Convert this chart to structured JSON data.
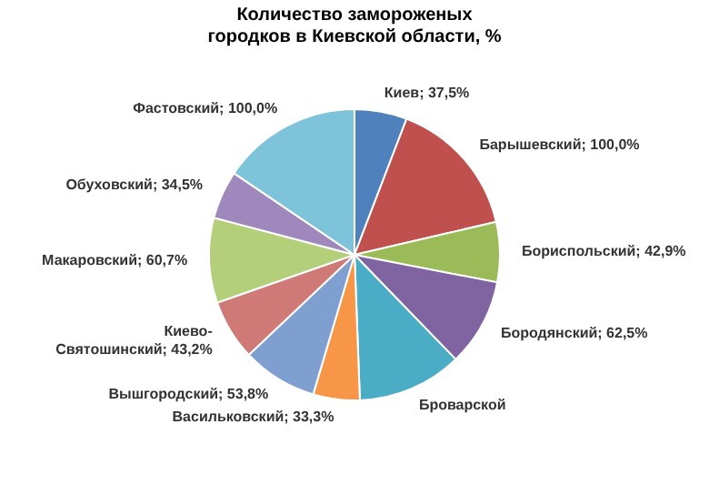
{
  "chart_data": {
    "type": "pie",
    "title": "Количество замороженых городков в Киевской области, %",
    "categories": [
      "Киев",
      "Барышевский",
      "Бориспольский",
      "Бородянский",
      "Броварской",
      "Васильковский",
      "Вышгородский",
      "Киево-Святошинский",
      "Макаровский",
      "Обуховский",
      "Фастовский"
    ],
    "values": [
      37.5,
      100.0,
      42.9,
      62.5,
      75,
      33.3,
      53.8,
      43.2,
      60.7,
      34.5,
      100.0
    ],
    "value_labels": [
      "37,5%",
      "100,0%",
      "42,9%",
      "62,5%",
      null,
      "33,3%",
      "53,8%",
      "43,2%",
      "60,7%",
      "34,5%",
      "100,0%"
    ],
    "colors": [
      "#4f81bd",
      "#c0504d",
      "#9bbb59",
      "#8064a2",
      "#4bacc6",
      "#f79646",
      "#7f9fd0",
      "#d07a78",
      "#b3cf7a",
      "#9e88bc",
      "#7dc3d9"
    ],
    "legend": false
  }
}
